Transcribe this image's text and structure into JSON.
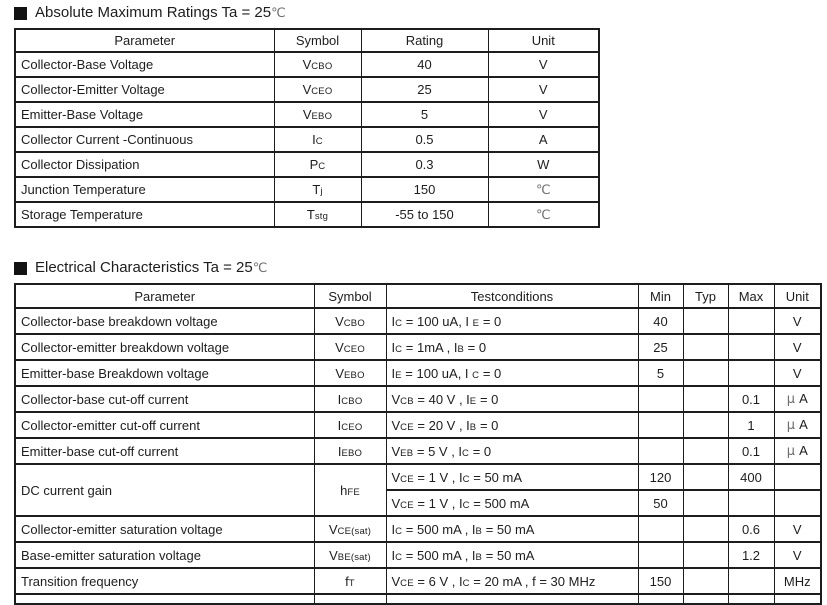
{
  "colors": {
    "text": "#1d1d1d",
    "border": "#1d1d1d",
    "muted": "#6e6e6e",
    "background": "#ffffff"
  },
  "amr": {
    "title": "Absolute Maximum Ratings Ta = 25^℃^",
    "marker_icon": "black-square",
    "headers": [
      "Parameter",
      "Symbol",
      "Rating",
      "Unit"
    ],
    "rows": [
      {
        "param": "Collector-Base Voltage",
        "symbol": "V~CBO~",
        "rating": "40",
        "unit": "V"
      },
      {
        "param": "Collector-Emitter Voltage",
        "symbol": "V~CEO~",
        "rating": "25",
        "unit": "V"
      },
      {
        "param": "Emitter-Base Voltage",
        "symbol": "V~EBO~",
        "rating": "5",
        "unit": "V"
      },
      {
        "param": "Collector Current -Continuous",
        "symbol": "I~C~",
        "rating": "0.5",
        "unit": "A"
      },
      {
        "param": "Collector Dissipation",
        "symbol": "P~C~",
        "rating": "0.3",
        "unit": "W"
      },
      {
        "param": "Junction Temperature",
        "symbol": "T~j~",
        "rating": "150",
        "unit": "^℃^"
      },
      {
        "param": "Storage Temperature",
        "symbol": "T~stg~",
        "rating": "-55 to 150",
        "unit": "^℃^"
      }
    ]
  },
  "ec": {
    "title": "Electrical Characteristics Ta = 25^℃^",
    "marker_icon": "black-square",
    "headers": [
      "Parameter",
      "Symbol",
      "Testconditions",
      "Min",
      "Typ",
      "Max",
      "Unit"
    ],
    "rows": [
      {
        "param": "Collector-base breakdown voltage",
        "symbol": "V~CBO~",
        "cond": "I~C~ = 100 uA, I ~E~ = 0",
        "min": "40",
        "typ": "",
        "max": "",
        "unit": "V"
      },
      {
        "param": "Collector-emitter breakdown voltage",
        "symbol": "V~CEO~",
        "cond": "I~C~ = 1mA , I~B~ = 0",
        "min": "25",
        "typ": "",
        "max": "",
        "unit": "V"
      },
      {
        "param": "Emitter-base Breakdown voltage",
        "symbol": "V~EBO~",
        "cond": "I~E~ = 100 uA, I ~C~ = 0",
        "min": "5",
        "typ": "",
        "max": "",
        "unit": "V"
      },
      {
        "param": "Collector-base cut-off current",
        "symbol": "I~CBO~",
        "cond": "V~CB~ = 40 V , I~E~ = 0",
        "min": "",
        "typ": "",
        "max": "0.1",
        "unit": "^μ ^A"
      },
      {
        "param": "Collector-emitter cut-off current",
        "symbol": "I~CEO~",
        "cond": "V~CE~ = 20 V , I~B~ = 0",
        "min": "",
        "typ": "",
        "max": "1",
        "unit": "^μ ^A"
      },
      {
        "param": "Emitter-base cut-off current",
        "symbol": "I~EBO~",
        "cond": "V~EB~ = 5 V , I~C~ = 0",
        "min": "",
        "typ": "",
        "max": "0.1",
        "unit": "^μ ^A"
      },
      {
        "param": "DC current gain",
        "symbol": "h~FE~",
        "sub_rows": [
          {
            "cond": "V~CE~ = 1 V , I~C~ = 50 mA",
            "min": "120",
            "typ": "",
            "max": "400",
            "unit": ""
          },
          {
            "cond": "V~CE~ = 1 V , I~C~ = 500 mA",
            "min": "50",
            "typ": "",
            "max": "",
            "unit": ""
          }
        ]
      },
      {
        "param": "Collector-emitter saturation voltage",
        "symbol": "V~CE(sat)~",
        "cond": "I~C~ = 500 mA , I~B~ = 50 mA",
        "min": "",
        "typ": "",
        "max": "0.6",
        "unit": "V"
      },
      {
        "param": "Base-emitter saturation voltage",
        "symbol": "V~BE(sat)~",
        "cond": "I~C~ = 500 mA , I~B~ = 50 mA",
        "min": "",
        "typ": "",
        "max": "1.2",
        "unit": "V"
      },
      {
        "param": "Transition frequency",
        "symbol": "f~T~",
        "cond": "V~CE~ = 6 V , I~C~ = 20 mA , f = 30 MHz",
        "min": "150",
        "typ": "",
        "max": "",
        "unit": "MHz"
      }
    ]
  }
}
